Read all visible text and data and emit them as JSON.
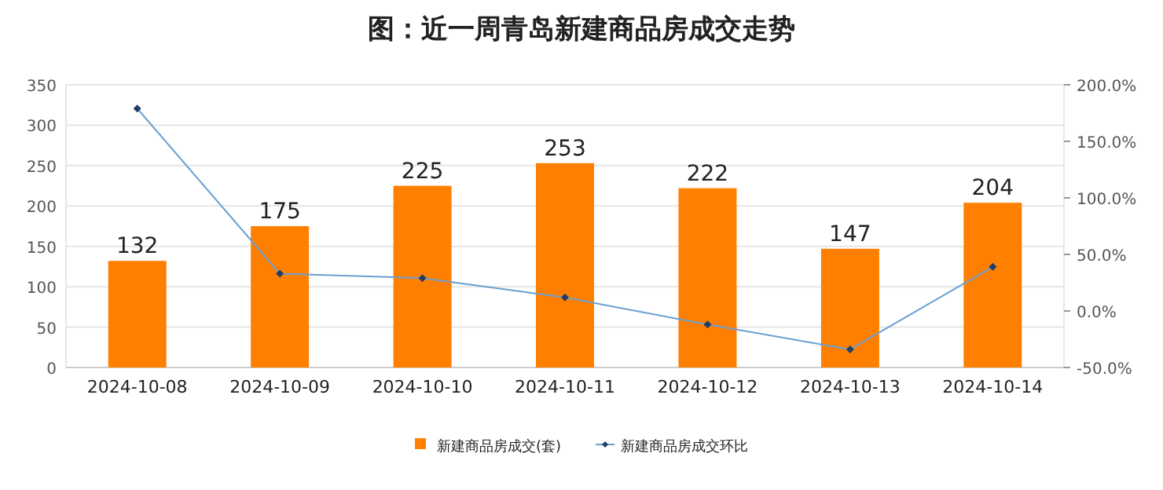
{
  "chart_data": {
    "type": "bar",
    "title": "图：近一周青岛新建商品房成交走势",
    "categories": [
      "2024-10-08",
      "2024-10-09",
      "2024-10-10",
      "2024-10-11",
      "2024-10-12",
      "2024-10-13",
      "2024-10-14"
    ],
    "series": [
      {
        "name": "新建商品房成交(套)",
        "color": "#ff8000",
        "values": [
          132,
          175,
          225,
          253,
          222,
          147,
          204
        ],
        "value_labels": [
          "132",
          "175",
          "225",
          "253",
          "222",
          "147",
          "204"
        ]
      },
      {
        "name": "新建商品房成交环比",
        "type": "line",
        "axis": "y2",
        "color": "#6a9fd4",
        "marker": "diamond",
        "values": [
          179,
          33,
          29,
          12,
          -12,
          -34,
          39
        ]
      }
    ],
    "ylim": [
      0,
      350
    ],
    "yticks": [
      0,
      50,
      100,
      150,
      200,
      250,
      300,
      350
    ],
    "y2lim": [
      -50,
      200
    ],
    "y2ticks": [
      {
        "value": -50,
        "label": "-50.0%"
      },
      {
        "value": 0,
        "label": "0.0%"
      },
      {
        "value": 50,
        "label": "50.0%"
      },
      {
        "value": 100,
        "label": "100.0%"
      },
      {
        "value": 150,
        "label": "150.0%"
      },
      {
        "value": 200,
        "label": "200.0%"
      }
    ],
    "grid": "y",
    "legend": "bottom"
  }
}
